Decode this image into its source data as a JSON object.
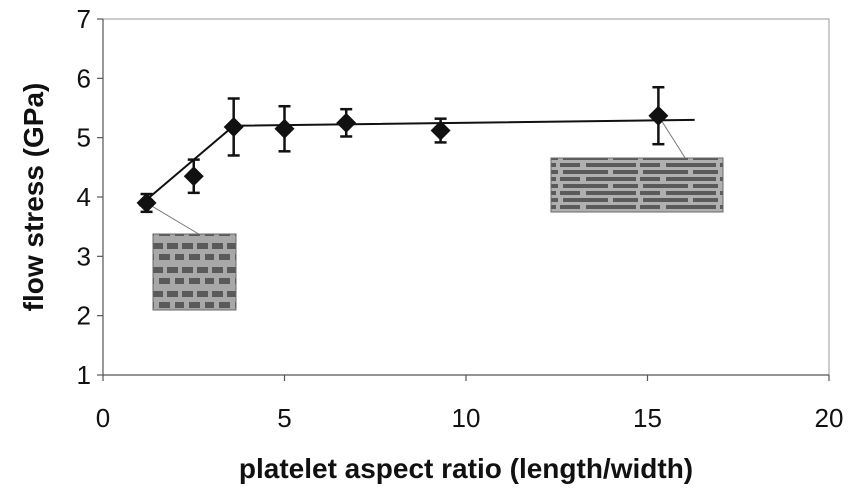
{
  "chart_data": {
    "type": "scatter",
    "title": "",
    "xlabel": "platelet aspect ratio (length/width)",
    "ylabel": "flow stress (GPa)",
    "xlim": [
      0,
      20
    ],
    "ylim": [
      1,
      7
    ],
    "x_ticks": [
      0,
      5,
      10,
      15,
      20
    ],
    "y_ticks": [
      1,
      2,
      3,
      4,
      5,
      6,
      7
    ],
    "grid": false,
    "legend": "none",
    "marker": "diamond",
    "colors": {
      "marker": "#111111",
      "line": "#111111",
      "axis": "#555555",
      "frame": "#999999"
    },
    "points": [
      {
        "x": 1.2,
        "y": 3.9,
        "err": 0.15
      },
      {
        "x": 2.5,
        "y": 4.35,
        "err": 0.28
      },
      {
        "x": 3.6,
        "y": 5.18,
        "err": 0.48
      },
      {
        "x": 5.0,
        "y": 5.15,
        "err": 0.38
      },
      {
        "x": 6.7,
        "y": 5.25,
        "err": 0.23
      },
      {
        "x": 9.3,
        "y": 5.12,
        "err": 0.2
      },
      {
        "x": 15.3,
        "y": 5.37,
        "err": 0.48
      }
    ],
    "fit_line": [
      {
        "x": 1.0,
        "y": 3.85
      },
      {
        "x": 3.6,
        "y": 5.2
      },
      {
        "x": 16.3,
        "y": 5.3
      }
    ],
    "insets": [
      {
        "name": "brick-inset-short-platelets",
        "anchor_point": 0,
        "pattern": "square"
      },
      {
        "name": "brick-inset-long-platelets",
        "anchor_point": 6,
        "pattern": "long"
      }
    ]
  }
}
